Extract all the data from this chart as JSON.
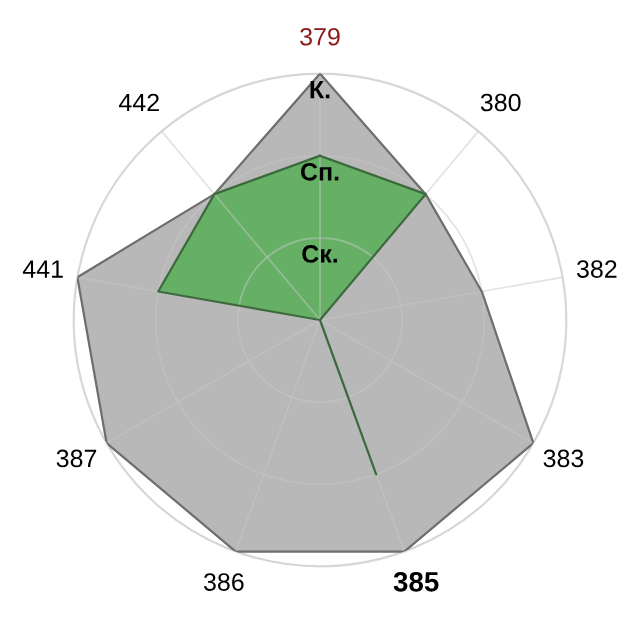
{
  "chart_data": {
    "type": "radar",
    "categories": [
      "379",
      "380",
      "382",
      "383",
      "385",
      "386",
      "387",
      "441",
      "442"
    ],
    "series": [
      {
        "color": "#b8b8b8",
        "values": [
          3,
          2,
          2,
          3,
          3,
          3,
          3,
          3,
          2
        ]
      },
      {
        "color": "#66b066",
        "values": [
          2,
          2,
          0,
          0,
          2,
          0,
          0,
          2,
          2
        ]
      }
    ],
    "ylim": [
      0,
      3
    ],
    "yticks": [
      {
        "value": 1,
        "label": "Ск."
      },
      {
        "value": 2,
        "label": "Сп."
      },
      {
        "value": 3,
        "label": "К."
      }
    ],
    "grid": true,
    "legend": false
  }
}
